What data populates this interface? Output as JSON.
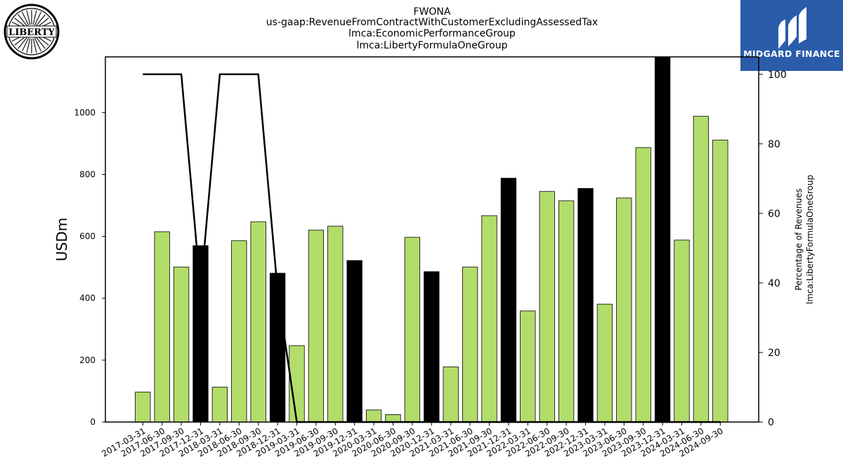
{
  "chart_data": {
    "type": "bar",
    "title_lines": [
      "FWONA",
      "us-gaap:RevenueFromContractWithCustomerExcludingAssessedTax",
      "lmca:EconomicPerformanceGroup",
      "lmca:LibertyFormulaOneGroup"
    ],
    "ylabel": "USDm",
    "ylabel_right_lines": [
      "Percentage of Revenues",
      "lmca:LibertyFormulaOneGroup"
    ],
    "ylim": [
      0,
      1180
    ],
    "ylim_right": [
      0,
      105
    ],
    "yticks": [
      0,
      200,
      400,
      600,
      800,
      1000
    ],
    "yticks_right": [
      0,
      20,
      40,
      60,
      80,
      100
    ],
    "grid": false,
    "categories": [
      "2017-03-31",
      "2017-06-30",
      "2017-09-30",
      "2017-12-31",
      "2018-03-31",
      "2018-06-30",
      "2018-09-30",
      "2018-12-31",
      "2019-03-31",
      "2019-06-30",
      "2019-09-30",
      "2019-12-31",
      "2020-03-31",
      "2020-06-30",
      "2020-09-30",
      "2020-12-31",
      "2021-03-31",
      "2021-06-30",
      "2021-09-30",
      "2021-12-31",
      "2022-03-31",
      "2022-06-30",
      "2022-09-30",
      "2022-12-31",
      "2023-03-31",
      "2023-06-30",
      "2023-09-30",
      "2023-12-31",
      "2024-03-31",
      "2024-06-30",
      "2024-09-30"
    ],
    "series": [
      {
        "values": [
          97,
          615,
          501,
          570,
          113,
          586,
          647,
          481,
          247,
          620,
          633,
          522,
          39,
          24,
          597,
          486,
          178,
          501,
          667,
          788,
          359,
          745,
          715,
          755,
          381,
          724,
          887,
          1180,
          588,
          988,
          911
        ],
        "colors": [
          "#b3dd6a",
          "#b3dd6a",
          "#b3dd6a",
          "#000000",
          "#b3dd6a",
          "#b3dd6a",
          "#b3dd6a",
          "#000000",
          "#b3dd6a",
          "#b3dd6a",
          "#b3dd6a",
          "#000000",
          "#b3dd6a",
          "#b3dd6a",
          "#b3dd6a",
          "#000000",
          "#b3dd6a",
          "#b3dd6a",
          "#b3dd6a",
          "#000000",
          "#b3dd6a",
          "#b3dd6a",
          "#b3dd6a",
          "#000000",
          "#b3dd6a",
          "#b3dd6a",
          "#b3dd6a",
          "#000000",
          "#b3dd6a",
          "#b3dd6a",
          "#b3dd6a"
        ]
      },
      {
        "type": "line",
        "axis": "right",
        "values": [
          100,
          100,
          100,
          38,
          100,
          100,
          100,
          38,
          0,
          0,
          0,
          0,
          0,
          0,
          0,
          0,
          0,
          0,
          0,
          0,
          0,
          0,
          0,
          0,
          0,
          0,
          0,
          0,
          0,
          0,
          0
        ]
      }
    ]
  },
  "logos": {
    "liberty_text": "LIBERTY",
    "brand_name": "MIDGARD FINANCE",
    "brand_bg": "#2a5caa"
  },
  "colors": {
    "bar_green": "#b3dd6a",
    "bar_black": "#000000",
    "line": "#000000"
  }
}
